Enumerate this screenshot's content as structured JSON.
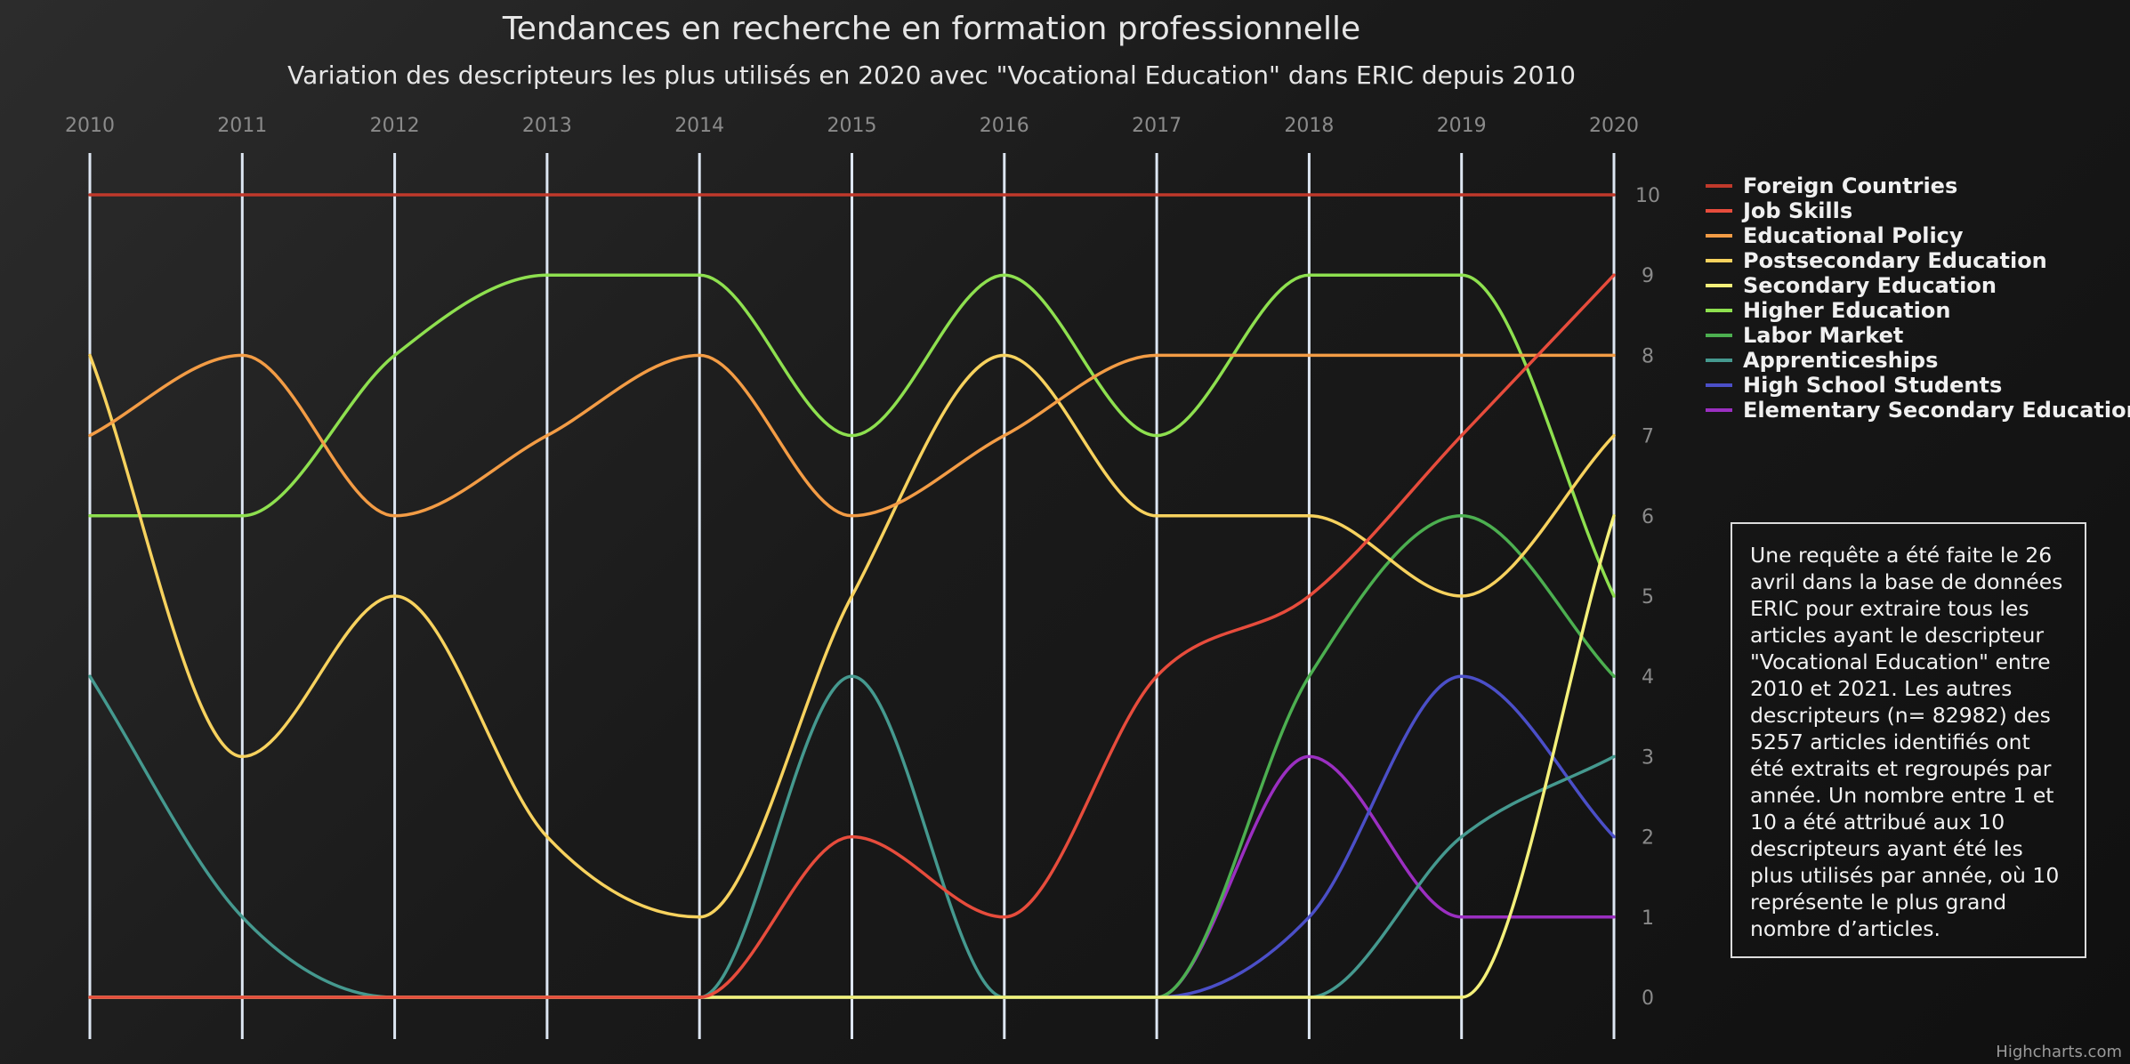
{
  "chart_data": {
    "type": "line",
    "title": "Tendances en recherche en formation professionnelle",
    "subtitle": "Variation des descripteurs les plus utilisés en 2020 avec \"Vocational Education\" dans ERIC depuis 2010",
    "x": [
      "2010",
      "2011",
      "2012",
      "2013",
      "2014",
      "2015",
      "2016",
      "2017",
      "2018",
      "2019",
      "2020"
    ],
    "y_ticks": [
      "0",
      "1",
      "2",
      "3",
      "4",
      "5",
      "6",
      "7",
      "8",
      "9",
      "10"
    ],
    "ylim": [
      0,
      10
    ],
    "legend_position": "right",
    "grid": "vertical",
    "series": [
      {
        "name": "Foreign Countries",
        "color": "#c0392b",
        "values": [
          10,
          10,
          10,
          10,
          10,
          10,
          10,
          10,
          10,
          10,
          10
        ]
      },
      {
        "name": "Job Skills",
        "color": "#e74c3c",
        "values": [
          0,
          0,
          0,
          0,
          0,
          2,
          1,
          4,
          5,
          7,
          9
        ]
      },
      {
        "name": "Educational Policy",
        "color": "#f39c45",
        "values": [
          7,
          8,
          6,
          7,
          8,
          6,
          7,
          8,
          8,
          8,
          8
        ]
      },
      {
        "name": "Postsecondary Education",
        "color": "#f7d25e",
        "values": [
          8,
          3,
          5,
          2,
          1,
          5,
          8,
          6,
          6,
          5,
          7
        ]
      },
      {
        "name": "Secondary Education",
        "color": "#f4f07a",
        "values": [
          0,
          0,
          0,
          0,
          0,
          0,
          0,
          0,
          0,
          0,
          6
        ]
      },
      {
        "name": "Higher Education",
        "color": "#8ee04f",
        "values": [
          6,
          6,
          8,
          9,
          9,
          7,
          9,
          7,
          9,
          9,
          5
        ]
      },
      {
        "name": "Labor Market",
        "color": "#4caf50",
        "values": [
          0,
          0,
          0,
          0,
          0,
          0,
          0,
          0,
          4,
          6,
          4
        ]
      },
      {
        "name": "Apprenticeships",
        "color": "#45998f",
        "values": [
          4,
          1,
          0,
          0,
          0,
          4,
          0,
          0,
          0,
          2,
          3
        ]
      },
      {
        "name": "High School Students",
        "color": "#4b4fc8",
        "values": [
          0,
          0,
          0,
          0,
          0,
          0,
          0,
          0,
          1,
          4,
          2
        ]
      },
      {
        "name": "Elementary Secondary Education",
        "color": "#9b2fc1",
        "values": [
          0,
          0,
          0,
          0,
          0,
          0,
          0,
          0,
          3,
          1,
          1
        ]
      }
    ]
  },
  "note": "Une requête a été faite le 26 avril dans la base de données ERIC pour extraire tous les articles ayant le descripteur \"Vocational Education\" entre 2010 et 2021. Les autres descripteurs (n= 82982) des 5257 articles identifiés ont été extraits et regroupés par année. Un nombre entre 1 et 10 a été attribué aux 10 descripteurs ayant été les plus utilisés par année, où 10 représente le plus grand nombre d’articles.",
  "credit": "Highcharts.com",
  "colors": {
    "gridline": "#dde6f2",
    "tick_label": "#8a8a8a",
    "text": "#e6e6e6"
  }
}
